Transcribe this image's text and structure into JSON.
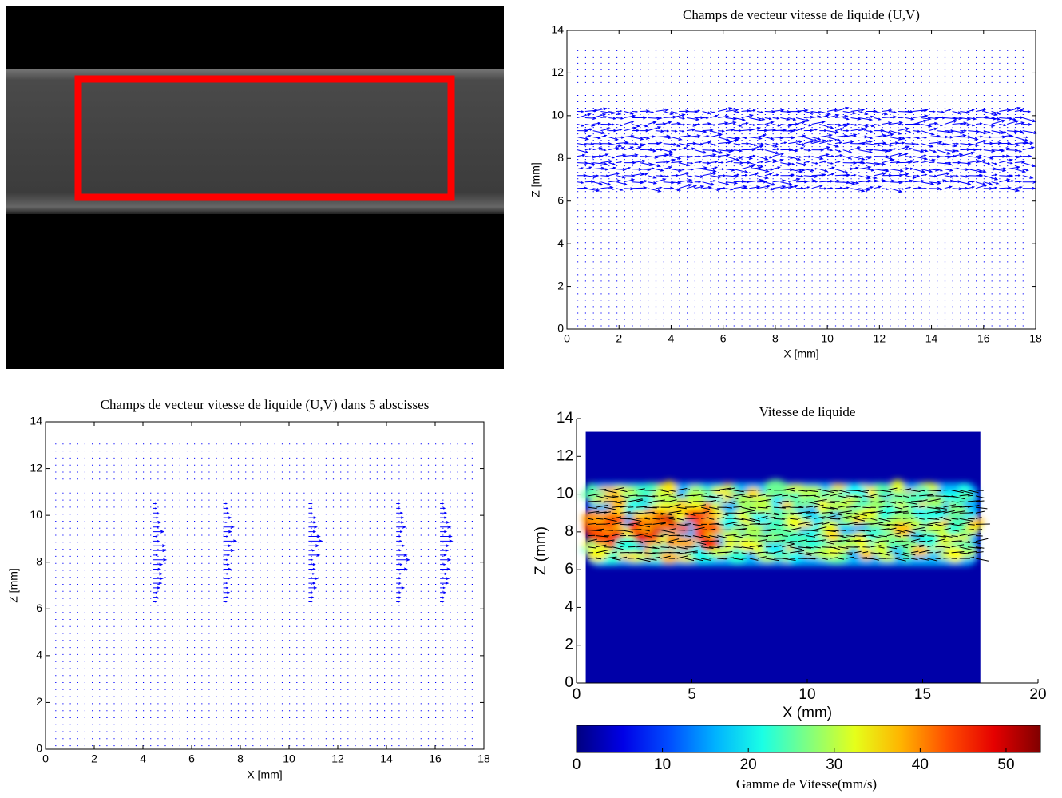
{
  "chart_data": [
    {
      "type": "quiver",
      "title": "Champs de vecteur vitesse de liquide (U,V)",
      "xlabel": "X [mm]",
      "ylabel": "Z [mm]",
      "xlim": [
        0,
        18
      ],
      "ylim": [
        0,
        14
      ],
      "xticks": [
        0,
        2,
        4,
        6,
        8,
        10,
        12,
        14,
        16,
        18
      ],
      "yticks": [
        0,
        2,
        4,
        6,
        8,
        10,
        12,
        14
      ],
      "color": "#0000ff"
    },
    {
      "type": "quiver",
      "title": "Champs de vecteur vitesse de liquide (U,V) dans 5 abscisses",
      "xlabel": "X [mm]",
      "ylabel": "Z [mm]",
      "xlim": [
        0,
        18
      ],
      "ylim": [
        0,
        14
      ],
      "xticks": [
        0,
        2,
        4,
        6,
        8,
        10,
        12,
        14,
        16,
        18
      ],
      "yticks": [
        0,
        2,
        4,
        6,
        8,
        10,
        12,
        14
      ],
      "color": "#0000ff",
      "profiles_x": [
        4.4,
        7.3,
        10.8,
        14.4,
        16.2
      ]
    },
    {
      "type": "heatmap",
      "title": "Vitesse de liquide",
      "xlabel": "X (mm)",
      "ylabel": "Z (mm)",
      "xlim": [
        0,
        20
      ],
      "ylim": [
        0,
        14
      ],
      "xticks": [
        0,
        5,
        10,
        15,
        20
      ],
      "yticks": [
        0,
        2,
        4,
        6,
        8,
        10,
        12,
        14
      ],
      "colormap": "jet",
      "colorbar": {
        "label": "Gamme de Vitesse(mm/s)",
        "lim": [
          0,
          54
        ],
        "ticks": [
          0,
          10,
          20,
          30,
          40,
          50
        ]
      }
    }
  ]
}
